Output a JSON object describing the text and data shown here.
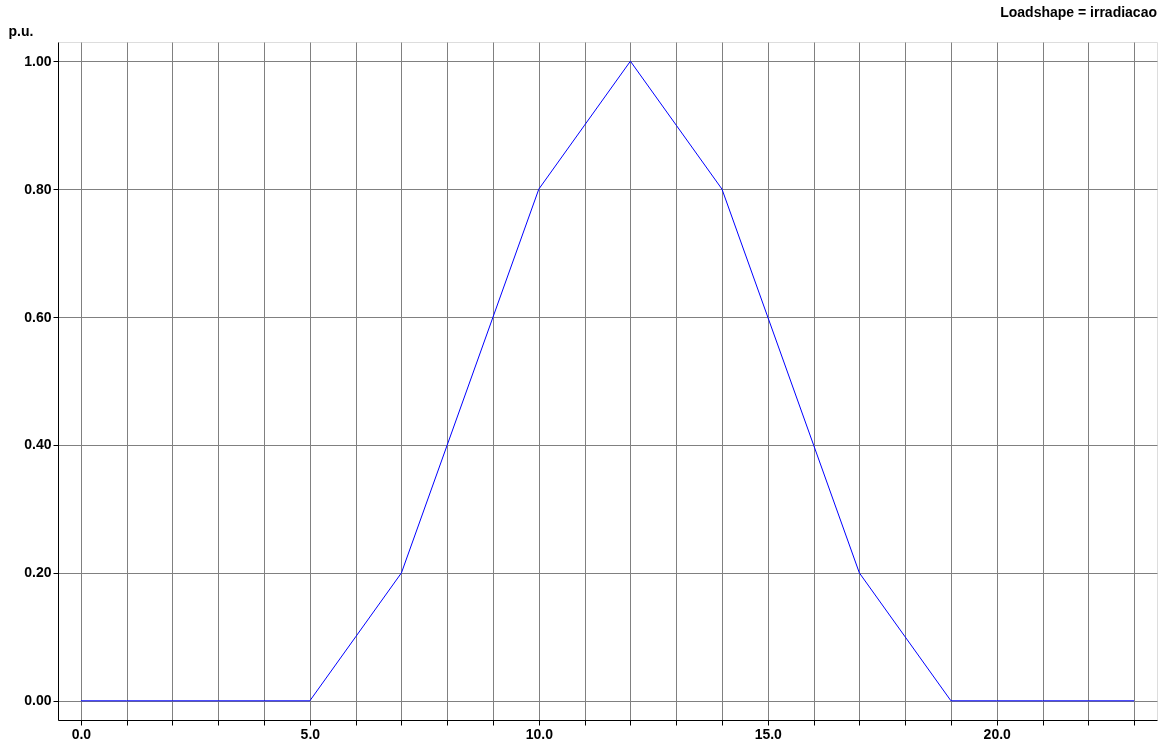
{
  "chart_data": {
    "type": "line",
    "title": "Loadshape = irradiacao",
    "ylabel": "p.u.",
    "x": [
      0,
      1,
      2,
      3,
      4,
      5,
      6,
      7,
      8,
      9,
      10,
      11,
      12,
      13,
      14,
      15,
      16,
      17,
      18,
      19,
      20,
      21,
      22,
      23
    ],
    "series": [
      {
        "color": "#0000ff",
        "values": [
          0,
          0,
          0,
          0,
          0,
          0,
          0.1,
          0.2,
          0.4,
          0.6,
          0.8,
          0.9,
          1.0,
          0.9,
          0.8,
          0.6,
          0.4,
          0.2,
          0.1,
          0,
          0,
          0,
          0,
          0
        ]
      }
    ],
    "xlim": [
      -0.5,
      23.5
    ],
    "ylim": [
      -0.03,
      1.03
    ],
    "xticks": [
      {
        "value": 0,
        "label": "0.0"
      },
      {
        "value": 1,
        "label": null
      },
      {
        "value": 2,
        "label": null
      },
      {
        "value": 3,
        "label": null
      },
      {
        "value": 4,
        "label": null
      },
      {
        "value": 5,
        "label": "5.0"
      },
      {
        "value": 6,
        "label": null
      },
      {
        "value": 7,
        "label": null
      },
      {
        "value": 8,
        "label": null
      },
      {
        "value": 9,
        "label": null
      },
      {
        "value": 10,
        "label": "10.0"
      },
      {
        "value": 11,
        "label": null
      },
      {
        "value": 12,
        "label": null
      },
      {
        "value": 13,
        "label": null
      },
      {
        "value": 14,
        "label": null
      },
      {
        "value": 15,
        "label": "15.0"
      },
      {
        "value": 16,
        "label": null
      },
      {
        "value": 17,
        "label": null
      },
      {
        "value": 18,
        "label": null
      },
      {
        "value": 19,
        "label": null
      },
      {
        "value": 20,
        "label": "20.0"
      },
      {
        "value": 21,
        "label": null
      },
      {
        "value": 22,
        "label": null
      },
      {
        "value": 23,
        "label": null
      }
    ],
    "yticks": [
      {
        "value": 0,
        "label": "0.00"
      },
      {
        "value": 0.2,
        "label": "0.20"
      },
      {
        "value": 0.4,
        "label": "0.40"
      },
      {
        "value": 0.6,
        "label": "0.60"
      },
      {
        "value": 0.8,
        "label": "0.80"
      },
      {
        "value": 1.0,
        "label": "1.00"
      }
    ],
    "grid": true,
    "legend": false,
    "marker": "none",
    "line_style": "solid"
  }
}
